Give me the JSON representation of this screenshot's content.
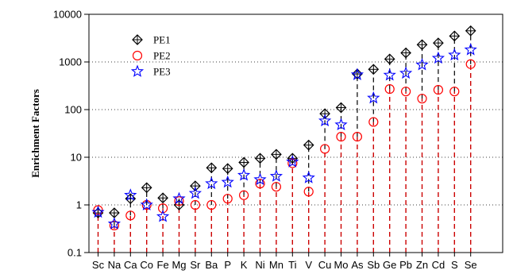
{
  "chart_data": {
    "type": "scatter",
    "title": "",
    "xlabel": "",
    "ylabel": "Enrichment Factors",
    "yscale": "log",
    "ylim": [
      0.1,
      10000
    ],
    "yticks": [
      "0.1",
      "1",
      "10",
      "100",
      "1000",
      "10000"
    ],
    "grid": "horizontal-dotted",
    "legend_position": "top-left",
    "categories": [
      "Sc",
      "Na",
      "Ca",
      "Co",
      "Fe",
      "Mg",
      "Sr",
      "Ba",
      "P",
      "K",
      "Ni",
      "Mn",
      "Ti",
      "V",
      "Cu",
      "Mo",
      "As",
      "Sb",
      "Ge",
      "Pb",
      "Zn",
      "Cd",
      "S",
      "Se"
    ],
    "series": [
      {
        "name": "PE1",
        "marker": "diamond-cross",
        "color": "#000000",
        "values": [
          0.68,
          0.68,
          1.35,
          2.3,
          1.4,
          1.0,
          2.5,
          6.0,
          5.8,
          7.8,
          9.5,
          11.5,
          9.5,
          18,
          82,
          110,
          560,
          700,
          1150,
          1550,
          2300,
          2500,
          3500,
          4500
        ]
      },
      {
        "name": "PE2",
        "marker": "circle",
        "color": "#ff0000",
        "values": [
          0.78,
          0.37,
          0.6,
          1.0,
          0.85,
          1.2,
          1.0,
          1.0,
          1.35,
          1.6,
          2.8,
          2.4,
          7.5,
          1.9,
          15,
          27,
          27,
          55,
          270,
          240,
          170,
          260,
          240,
          900
        ]
      },
      {
        "name": "PE3",
        "marker": "star",
        "color": "#0000ff",
        "values": [
          0.7,
          0.4,
          1.6,
          1.0,
          0.57,
          1.35,
          1.75,
          2.8,
          3.0,
          4.2,
          3.4,
          4.0,
          8.0,
          3.7,
          58,
          48,
          540,
          175,
          530,
          580,
          870,
          1200,
          1400,
          1800
        ]
      }
    ]
  }
}
